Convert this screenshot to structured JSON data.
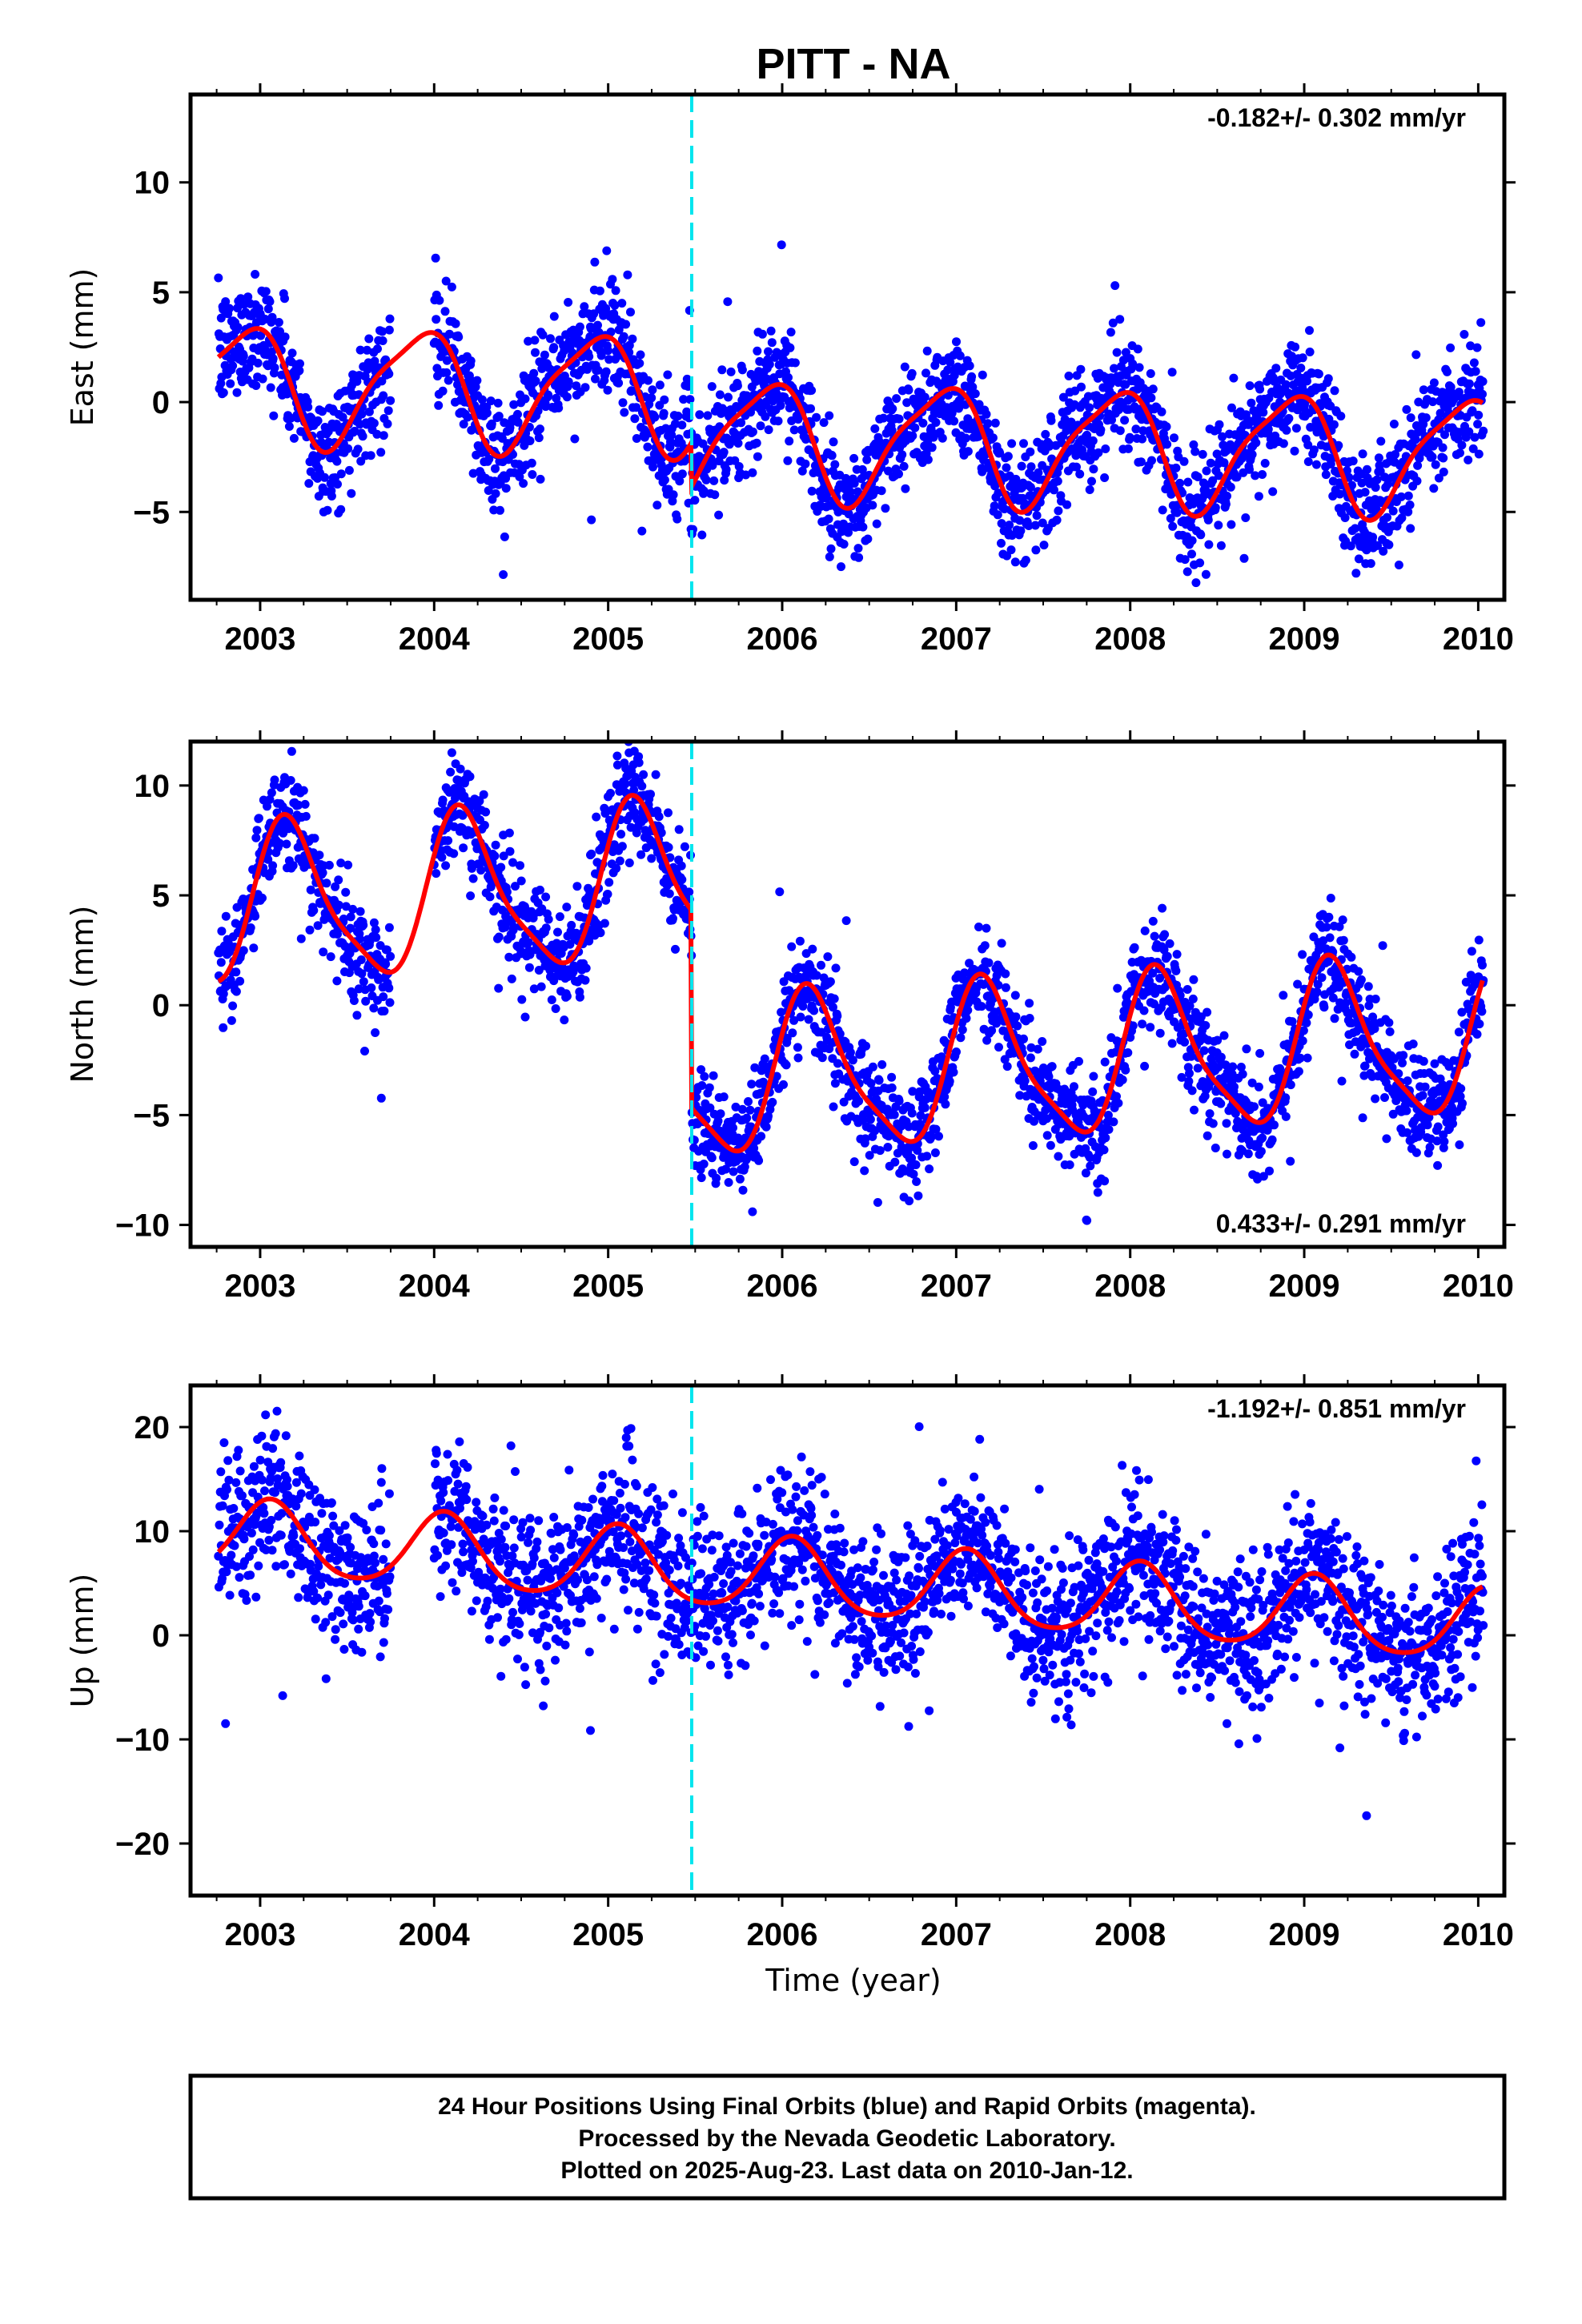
{
  "chart_data": {
    "type": "scatter",
    "title": "PITT - NA",
    "xlabel": "Time (year)",
    "xlim": [
      2002.6,
      2010.15
    ],
    "x_ticks": [
      2003,
      2004,
      2005,
      2006,
      2007,
      2008,
      2009,
      2010
    ],
    "equipment_change_year": 2005.48,
    "series_legend": "Final Orbits (blue), fitted model (red), equipment change (cyan dashed)",
    "colors": {
      "points": "#0000ff",
      "model": "#ff0000",
      "marker": "#00e5ee"
    },
    "panels": [
      {
        "id": "east",
        "ylabel": "East (mm)",
        "ylim": [
          -9,
          14
        ],
        "y_ticks": [
          -5,
          0,
          5,
          10
        ],
        "y_tick_labels": [
          "−5",
          "0",
          "5",
          "10"
        ],
        "rate_label": "-0.182+/- 0.302 mm/yr",
        "rate_position": "top-right",
        "model": {
          "offset": 0.2,
          "trend": -0.182,
          "annual": 2.6,
          "phase": 2.13,
          "semiannual": 0.6,
          "phase2": 0.5,
          "step": -2.0
        },
        "scatter_sd": 1.3
      },
      {
        "id": "north",
        "ylabel": "North (mm)",
        "ylim": [
          -11,
          12
        ],
        "y_ticks": [
          -10,
          -5,
          0,
          5,
          10
        ],
        "y_tick_labels": [
          "−10",
          "−5",
          "0",
          "5",
          "10"
        ],
        "rate_label": "0.433+/- 0.291 mm/yr",
        "rate_position": "bottom-right",
        "model": {
          "offset": 6.0,
          "trend": 0.433,
          "annual": 3.5,
          "phase": 0.5,
          "semiannual": 0.8,
          "phase2": 0.3,
          "step": -9.0
        },
        "scatter_sd": 1.2
      },
      {
        "id": "up",
        "ylabel": "Up (mm)",
        "ylim": [
          -25,
          24
        ],
        "y_ticks": [
          -20,
          -10,
          0,
          10,
          20
        ],
        "y_tick_labels": [
          "−20",
          "−10",
          "0",
          "10",
          "20"
        ],
        "rate_label": "-1.192+/- 0.851 mm/yr",
        "rate_position": "top-right",
        "model": {
          "offset": 5.0,
          "trend": -1.192,
          "annual": 3.5,
          "phase": 1.2,
          "semiannual": 0.5,
          "phase2": 0.8,
          "step": 0.0
        },
        "scatter_sd": 3.6
      }
    ]
  },
  "footer": {
    "line1": "24 Hour Positions Using Final Orbits (blue) and Rapid Orbits (magenta).",
    "line2": "Processed by the Nevada Geodetic Laboratory.",
    "line3": "Plotted on 2025-Aug-23. Last data on 2010-Jan-12."
  }
}
